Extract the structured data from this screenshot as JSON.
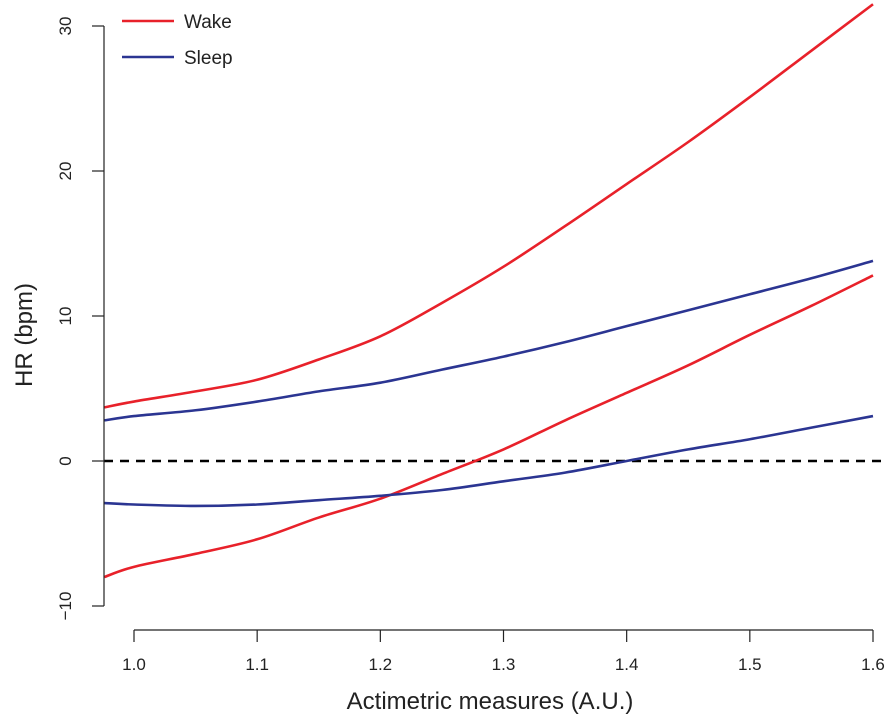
{
  "chart_data": {
    "type": "line",
    "title": "",
    "xlabel": "Actimetric measures (A.U.)",
    "ylabel": "HR (bpm)",
    "xlim": [
      0.976,
      1.6
    ],
    "ylim": [
      -10,
      31
    ],
    "x_ticks": [
      1.0,
      1.1,
      1.2,
      1.3,
      1.4,
      1.5,
      1.6
    ],
    "x_tick_labels": [
      "1.0",
      "1.1",
      "1.2",
      "1.3",
      "1.4",
      "1.5",
      "1.6"
    ],
    "y_ticks": [
      -10,
      0,
      10,
      20,
      30
    ],
    "y_tick_labels": [
      "−10",
      "0",
      "10",
      "20",
      "30"
    ],
    "grid": false,
    "legend": {
      "position": "top-left",
      "entries": [
        {
          "label": "Wake",
          "color": "#e8212a"
        },
        {
          "label": "Sleep",
          "color": "#2b3592"
        }
      ]
    },
    "reference_line": {
      "y": 0,
      "style": "dashed",
      "color": "#000000"
    },
    "series": [
      {
        "legend_label": "Wake",
        "color": "#e8212a",
        "x": [
          0.976,
          1.0,
          1.05,
          1.1,
          1.15,
          1.2,
          1.25,
          1.3,
          1.35,
          1.4,
          1.45,
          1.5,
          1.55,
          1.6
        ],
        "y": [
          3.7,
          4.1,
          4.8,
          5.6,
          7.0,
          8.6,
          10.9,
          13.4,
          16.2,
          19.1,
          22.0,
          25.1,
          28.3,
          31.5
        ]
      },
      {
        "legend_label": "Wake",
        "color": "#e8212a",
        "x": [
          0.976,
          1.0,
          1.05,
          1.1,
          1.15,
          1.2,
          1.25,
          1.3,
          1.35,
          1.4,
          1.45,
          1.5,
          1.55,
          1.6
        ],
        "y": [
          -8.0,
          -7.3,
          -6.4,
          -5.4,
          -3.9,
          -2.6,
          -0.9,
          0.8,
          2.8,
          4.7,
          6.6,
          8.7,
          10.7,
          12.8
        ]
      },
      {
        "legend_label": "Sleep",
        "color": "#2b3592",
        "x": [
          0.976,
          1.0,
          1.05,
          1.1,
          1.15,
          1.2,
          1.25,
          1.3,
          1.35,
          1.4,
          1.45,
          1.5,
          1.55,
          1.6
        ],
        "y": [
          2.8,
          3.1,
          3.5,
          4.1,
          4.8,
          5.4,
          6.3,
          7.2,
          8.2,
          9.3,
          10.4,
          11.5,
          12.6,
          13.8
        ]
      },
      {
        "legend_label": "Sleep",
        "color": "#2b3592",
        "x": [
          0.976,
          1.0,
          1.05,
          1.1,
          1.15,
          1.2,
          1.25,
          1.3,
          1.35,
          1.4,
          1.45,
          1.5,
          1.55,
          1.6
        ],
        "y": [
          -2.9,
          -3.0,
          -3.1,
          -3.0,
          -2.7,
          -2.4,
          -2.0,
          -1.4,
          -0.8,
          0.0,
          0.8,
          1.5,
          2.3,
          3.1
        ]
      }
    ]
  }
}
